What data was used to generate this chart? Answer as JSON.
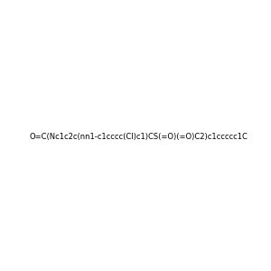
{
  "smiles": "O=C(Nc1c2c(nn1-c1cccc(Cl)c1)CS(=O)(=O)C2)c1ccccc1C",
  "img_size": [
    300,
    300
  ],
  "background_color": "#e8e8e8",
  "title": "",
  "bond_color": "black",
  "atom_colors": {
    "N": "#0000FF",
    "O": "#FF0000",
    "S": "#CCCC00",
    "Cl": "#00AA00",
    "C": "#000000",
    "H": "#888888"
  }
}
